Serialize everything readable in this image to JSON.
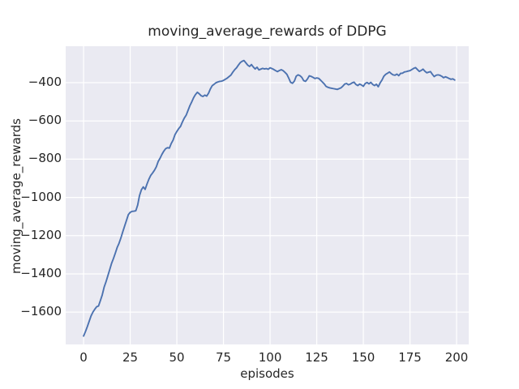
{
  "colors": {
    "figure_background": "#ffffff",
    "axes_background": "#eaeaf2",
    "grid_line": "#ffffff",
    "text": "#262626",
    "series_line": "#4c72b0"
  },
  "chart_data": {
    "type": "line",
    "title": "moving_average_rewards of DDPG",
    "xlabel": "episodes",
    "ylabel": "moving_average_rewards",
    "style": "seaborn-darkgrid",
    "grid": true,
    "legend": "none",
    "x_ticks": [
      0,
      25,
      50,
      75,
      100,
      125,
      150,
      175,
      200
    ],
    "y_ticks": [
      -400,
      -600,
      -800,
      -1000,
      -1200,
      -1400,
      -1600
    ],
    "xlim": [
      -9.6,
      206.5
    ],
    "ylim": [
      -1769,
      -209
    ],
    "series": [
      {
        "name": "moving_average_rewards",
        "color": "#4c72b0",
        "x_start": 0,
        "x_step": 1,
        "y": [
          -1725,
          -1702,
          -1676,
          -1648,
          -1620,
          -1600,
          -1585,
          -1572,
          -1568,
          -1540,
          -1510,
          -1470,
          -1442,
          -1410,
          -1378,
          -1345,
          -1320,
          -1292,
          -1262,
          -1240,
          -1212,
          -1180,
          -1150,
          -1120,
          -1090,
          -1078,
          -1073,
          -1072,
          -1070,
          -1040,
          -990,
          -960,
          -945,
          -958,
          -930,
          -905,
          -885,
          -872,
          -858,
          -840,
          -812,
          -795,
          -775,
          -758,
          -745,
          -740,
          -742,
          -718,
          -700,
          -672,
          -655,
          -640,
          -628,
          -605,
          -585,
          -570,
          -545,
          -520,
          -500,
          -478,
          -462,
          -450,
          -458,
          -468,
          -472,
          -465,
          -470,
          -455,
          -432,
          -415,
          -408,
          -400,
          -396,
          -393,
          -392,
          -388,
          -382,
          -376,
          -368,
          -360,
          -345,
          -332,
          -322,
          -308,
          -295,
          -288,
          -284,
          -296,
          -308,
          -315,
          -305,
          -318,
          -328,
          -319,
          -333,
          -329,
          -325,
          -328,
          -326,
          -330,
          -322,
          -326,
          -331,
          -337,
          -342,
          -336,
          -332,
          -337,
          -346,
          -356,
          -376,
          -398,
          -403,
          -392,
          -366,
          -359,
          -363,
          -372,
          -389,
          -393,
          -381,
          -364,
          -367,
          -372,
          -378,
          -375,
          -377,
          -386,
          -396,
          -406,
          -419,
          -424,
          -427,
          -429,
          -431,
          -433,
          -435,
          -431,
          -427,
          -418,
          -407,
          -404,
          -411,
          -407,
          -401,
          -397,
          -409,
          -415,
          -407,
          -412,
          -419,
          -404,
          -399,
          -406,
          -398,
          -409,
          -415,
          -408,
          -421,
          -401,
          -386,
          -366,
          -356,
          -350,
          -344,
          -353,
          -359,
          -361,
          -355,
          -363,
          -351,
          -350,
          -344,
          -342,
          -339,
          -337,
          -331,
          -325,
          -321,
          -331,
          -341,
          -336,
          -329,
          -340,
          -348,
          -345,
          -342,
          -356,
          -368,
          -361,
          -359,
          -361,
          -366,
          -374,
          -369,
          -373,
          -378,
          -382,
          -380,
          -386
        ]
      }
    ]
  }
}
